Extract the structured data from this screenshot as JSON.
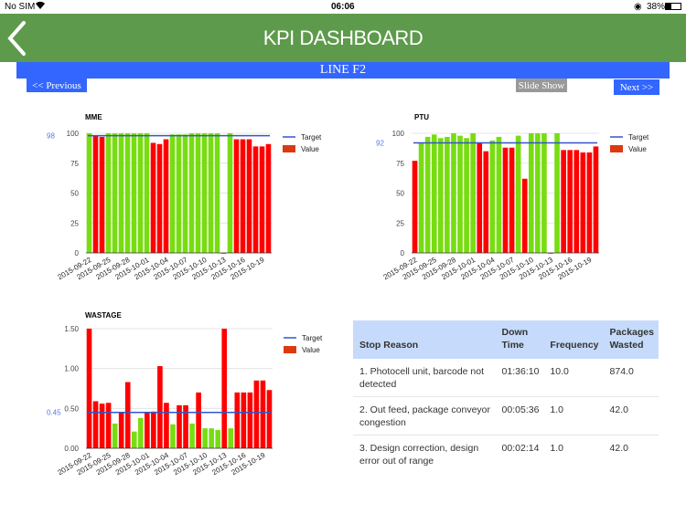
{
  "status_bar": {
    "carrier": "No SIM",
    "time": "06:06",
    "battery": "38%"
  },
  "header": {
    "title": "KPI DASHBOARD",
    "line": "LINE F2"
  },
  "nav": {
    "previous": "<< Previous",
    "slideshow": "Slide Show",
    "next": "Next >>"
  },
  "colors": {
    "header": "#5e9a4c",
    "accent": "#3366ff",
    "good": "#77dd11",
    "bad": "#ff0000",
    "target": "#3355cc",
    "legend_value": "#dc3912"
  },
  "legend": {
    "target": "Target",
    "value": "Value"
  },
  "chart_data": [
    {
      "type": "bar",
      "title": "MME",
      "ylim": [
        0,
        100
      ],
      "yticks": [
        "0",
        "25",
        "50",
        "75",
        "100"
      ],
      "target": 98,
      "target_label": "98",
      "x": [
        "2015-09-22",
        "2015-09-23",
        "2015-09-24",
        "2015-09-25",
        "2015-09-26",
        "2015-09-27",
        "2015-09-28",
        "2015-09-29",
        "2015-09-30",
        "2015-10-01",
        "2015-10-02",
        "2015-10-03",
        "2015-10-04",
        "2015-10-05",
        "2015-10-06",
        "2015-10-07",
        "2015-10-08",
        "2015-10-09",
        "2015-10-10",
        "2015-10-11",
        "2015-10-12",
        "2015-10-13",
        "2015-10-14",
        "2015-10-15",
        "2015-10-16",
        "2015-10-17",
        "2015-10-18",
        "2015-10-19",
        "2015-10-20"
      ],
      "xticks": [
        "2015-09-22",
        "2015-09-25",
        "2015-09-28",
        "2015-10-01",
        "2015-10-04",
        "2015-10-07",
        "2015-10-10",
        "2015-10-13",
        "2015-10-16",
        "2015-10-19"
      ],
      "values": [
        100,
        98,
        97,
        100,
        100,
        100,
        100,
        100,
        100,
        100,
        92,
        91,
        95,
        99,
        99,
        99,
        100,
        100,
        100,
        100,
        100,
        0,
        100,
        95,
        95,
        95,
        89,
        89,
        91
      ],
      "status": [
        "g",
        "r",
        "r",
        "g",
        "g",
        "g",
        "g",
        "g",
        "g",
        "g",
        "r",
        "r",
        "r",
        "g",
        "g",
        "g",
        "g",
        "g",
        "g",
        "g",
        "g",
        "r",
        "g",
        "r",
        "r",
        "r",
        "r",
        "r",
        "r"
      ]
    },
    {
      "type": "bar",
      "title": "PTU",
      "ylim": [
        0,
        100
      ],
      "yticks": [
        "0",
        "25",
        "50",
        "75",
        "100"
      ],
      "target": 92,
      "target_label": "92",
      "x": [
        "2015-09-22",
        "2015-09-23",
        "2015-09-24",
        "2015-09-25",
        "2015-09-26",
        "2015-09-27",
        "2015-09-28",
        "2015-09-29",
        "2015-09-30",
        "2015-10-01",
        "2015-10-02",
        "2015-10-03",
        "2015-10-04",
        "2015-10-05",
        "2015-10-06",
        "2015-10-07",
        "2015-10-08",
        "2015-10-09",
        "2015-10-10",
        "2015-10-11",
        "2015-10-12",
        "2015-10-13",
        "2015-10-14",
        "2015-10-15",
        "2015-10-16",
        "2015-10-17",
        "2015-10-18",
        "2015-10-19",
        "2015-10-20"
      ],
      "xticks": [
        "2015-09-22",
        "2015-09-25",
        "2015-09-28",
        "2015-10-01",
        "2015-10-04",
        "2015-10-07",
        "2015-10-10",
        "2015-10-13",
        "2015-10-16",
        "2015-10-19"
      ],
      "values": [
        77,
        92,
        97,
        99,
        96,
        97,
        100,
        98,
        96,
        100,
        92,
        85,
        94,
        97,
        88,
        88,
        98,
        62,
        100,
        100,
        100,
        0,
        100,
        86,
        86,
        86,
        84,
        84,
        89
      ],
      "status": [
        "r",
        "g",
        "g",
        "g",
        "g",
        "g",
        "g",
        "g",
        "g",
        "g",
        "r",
        "r",
        "g",
        "g",
        "r",
        "r",
        "g",
        "r",
        "g",
        "g",
        "g",
        "r",
        "g",
        "r",
        "r",
        "r",
        "r",
        "r",
        "r"
      ]
    },
    {
      "type": "bar",
      "title": "WASTAGE",
      "ylim": [
        0,
        1.5
      ],
      "yticks": [
        "0.00",
        "0.50",
        "1.00",
        "1.50"
      ],
      "target": 0.45,
      "target_label": "0.45",
      "x": [
        "2015-09-22",
        "2015-09-23",
        "2015-09-24",
        "2015-09-25",
        "2015-09-26",
        "2015-09-27",
        "2015-09-28",
        "2015-09-29",
        "2015-09-30",
        "2015-10-01",
        "2015-10-02",
        "2015-10-03",
        "2015-10-04",
        "2015-10-05",
        "2015-10-06",
        "2015-10-07",
        "2015-10-08",
        "2015-10-09",
        "2015-10-10",
        "2015-10-11",
        "2015-10-12",
        "2015-10-13",
        "2015-10-14",
        "2015-10-15",
        "2015-10-16",
        "2015-10-17",
        "2015-10-18",
        "2015-10-19",
        "2015-10-20"
      ],
      "xticks": [
        "2015-09-22",
        "2015-09-25",
        "2015-09-28",
        "2015-10-01",
        "2015-10-04",
        "2015-10-07",
        "2015-10-10",
        "2015-10-13",
        "2015-10-16",
        "2015-10-19"
      ],
      "values": [
        1.5,
        0.59,
        0.56,
        0.57,
        0.31,
        0.45,
        0.83,
        0.21,
        0.38,
        0.45,
        0.46,
        1.03,
        0.57,
        0.3,
        0.54,
        0.54,
        0.31,
        0.7,
        0.25,
        0.25,
        0.23,
        1.5,
        0.25,
        0.7,
        0.7,
        0.7,
        0.85,
        0.85,
        0.73
      ],
      "status": [
        "r",
        "r",
        "r",
        "r",
        "g",
        "r",
        "r",
        "g",
        "g",
        "r",
        "r",
        "r",
        "r",
        "g",
        "r",
        "r",
        "g",
        "r",
        "g",
        "g",
        "g",
        "r",
        "g",
        "r",
        "r",
        "r",
        "r",
        "r",
        "r"
      ]
    }
  ],
  "table": {
    "headers": [
      "Stop Reason",
      "Down Time",
      "Frequency",
      "Packages Wasted"
    ],
    "rows": [
      [
        "1. Photocell unit, barcode not detected",
        "01:36:10",
        "10.0",
        "874.0"
      ],
      [
        "2. Out feed, package conveyor congestion",
        "00:05:36",
        "1.0",
        "42.0"
      ],
      [
        "3. Design correction, design error out of range",
        "00:02:14",
        "1.0",
        "42.0"
      ]
    ]
  }
}
